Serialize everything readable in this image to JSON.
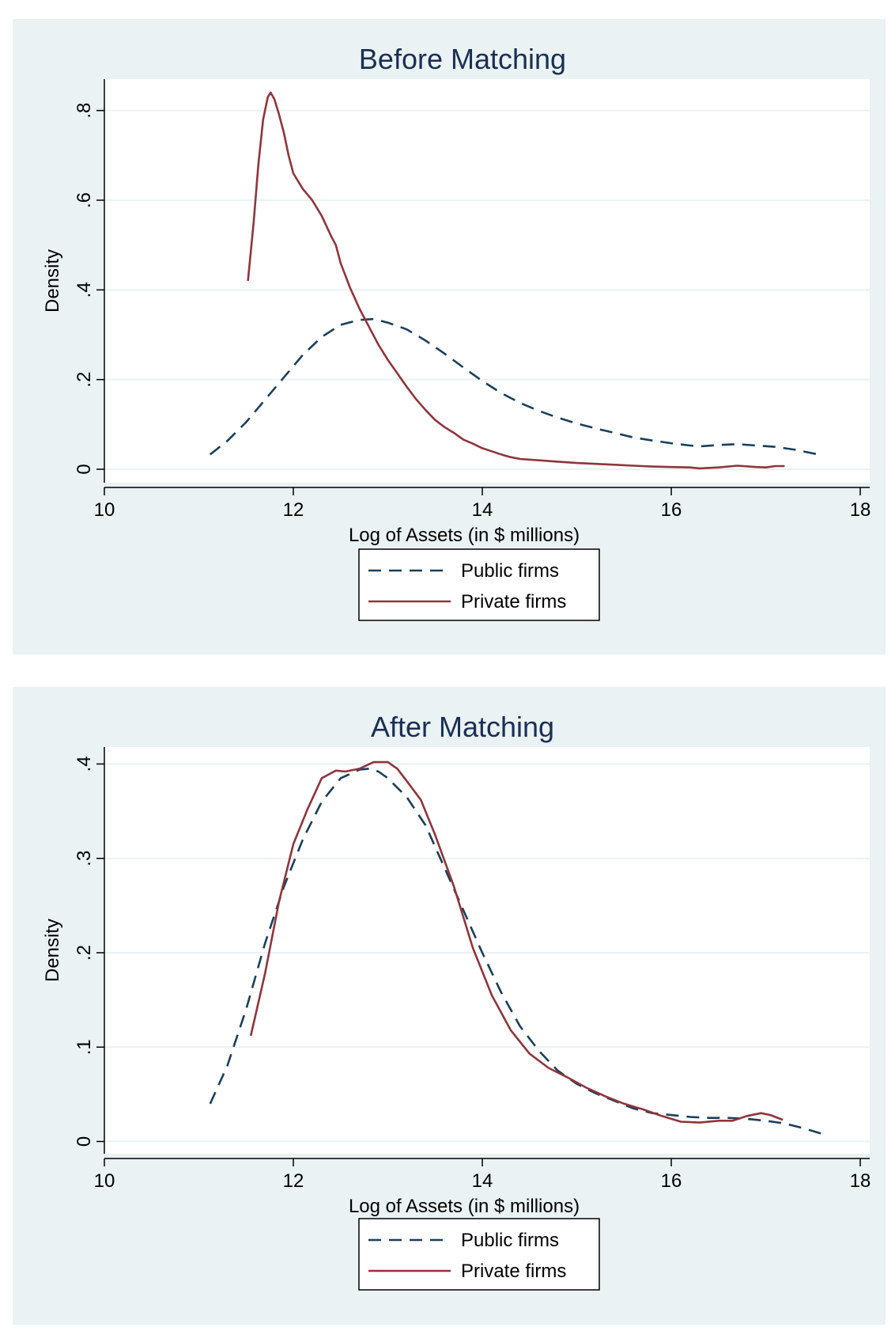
{
  "colors": {
    "panel_background": "#eaf2f3",
    "plot_background": "#ffffff",
    "grid": "#eaf2f3",
    "title": "#1a2f55",
    "public_firms": "#1a3f5c",
    "private_firms": "#90353b"
  },
  "chart_data": [
    {
      "type": "line",
      "title": "Before Matching",
      "xlabel": "Log of Assets (in $ millions)",
      "ylabel": "Density",
      "xlim": [
        10,
        18.1
      ],
      "ylim": [
        -0.03,
        0.87
      ],
      "xticks": [
        10,
        12,
        14,
        16,
        18
      ],
      "xtick_labels": [
        "10",
        "12",
        "14",
        "16",
        "18"
      ],
      "yticks": [
        0,
        0.2,
        0.4,
        0.6,
        0.8
      ],
      "ytick_labels": [
        "0",
        ".2",
        ".4",
        ".6",
        ".8"
      ],
      "grid": true,
      "legend_position": "bottom",
      "series": [
        {
          "name": "Public firms",
          "style": "dashed",
          "points": [
            [
              11.12,
              0.033
            ],
            [
              11.3,
              0.063
            ],
            [
              11.5,
              0.105
            ],
            [
              11.7,
              0.155
            ],
            [
              11.9,
              0.205
            ],
            [
              12.1,
              0.255
            ],
            [
              12.3,
              0.295
            ],
            [
              12.5,
              0.322
            ],
            [
              12.7,
              0.333
            ],
            [
              12.85,
              0.335
            ],
            [
              13.0,
              0.327
            ],
            [
              13.2,
              0.312
            ],
            [
              13.4,
              0.287
            ],
            [
              13.6,
              0.258
            ],
            [
              13.8,
              0.227
            ],
            [
              14.0,
              0.197
            ],
            [
              14.2,
              0.17
            ],
            [
              14.4,
              0.148
            ],
            [
              14.6,
              0.13
            ],
            [
              14.8,
              0.115
            ],
            [
              15.0,
              0.102
            ],
            [
              15.2,
              0.091
            ],
            [
              15.4,
              0.081
            ],
            [
              15.6,
              0.071
            ],
            [
              15.8,
              0.064
            ],
            [
              16.0,
              0.058
            ],
            [
              16.2,
              0.053
            ],
            [
              16.3,
              0.051
            ],
            [
              16.5,
              0.054
            ],
            [
              16.7,
              0.056
            ],
            [
              16.9,
              0.053
            ],
            [
              17.1,
              0.05
            ],
            [
              17.3,
              0.044
            ],
            [
              17.58,
              0.032
            ]
          ]
        },
        {
          "name": "Private firms",
          "style": "solid",
          "points": [
            [
              11.52,
              0.42
            ],
            [
              11.58,
              0.55
            ],
            [
              11.63,
              0.68
            ],
            [
              11.68,
              0.78
            ],
            [
              11.73,
              0.83
            ],
            [
              11.76,
              0.84
            ],
            [
              11.8,
              0.825
            ],
            [
              11.85,
              0.79
            ],
            [
              11.9,
              0.75
            ],
            [
              11.95,
              0.7
            ],
            [
              12.0,
              0.66
            ],
            [
              12.1,
              0.625
            ],
            [
              12.2,
              0.6
            ],
            [
              12.3,
              0.565
            ],
            [
              12.4,
              0.52
            ],
            [
              12.45,
              0.5
            ],
            [
              12.5,
              0.46
            ],
            [
              12.6,
              0.405
            ],
            [
              12.7,
              0.358
            ],
            [
              12.8,
              0.318
            ],
            [
              12.9,
              0.278
            ],
            [
              13.0,
              0.244
            ],
            [
              13.1,
              0.214
            ],
            [
              13.2,
              0.184
            ],
            [
              13.3,
              0.156
            ],
            [
              13.4,
              0.132
            ],
            [
              13.5,
              0.11
            ],
            [
              13.6,
              0.094
            ],
            [
              13.7,
              0.081
            ],
            [
              13.8,
              0.066
            ],
            [
              13.9,
              0.057
            ],
            [
              14.0,
              0.047
            ],
            [
              14.1,
              0.04
            ],
            [
              14.2,
              0.033
            ],
            [
              14.3,
              0.027
            ],
            [
              14.4,
              0.023
            ],
            [
              14.6,
              0.02
            ],
            [
              14.8,
              0.017
            ],
            [
              15.0,
              0.014
            ],
            [
              15.2,
              0.012
            ],
            [
              15.4,
              0.01
            ],
            [
              15.6,
              0.008
            ],
            [
              15.8,
              0.006
            ],
            [
              16.0,
              0.005
            ],
            [
              16.2,
              0.004
            ],
            [
              16.3,
              0.002
            ],
            [
              16.5,
              0.004
            ],
            [
              16.7,
              0.008
            ],
            [
              16.9,
              0.005
            ],
            [
              17.0,
              0.004
            ],
            [
              17.1,
              0.007
            ],
            [
              17.2,
              0.007
            ]
          ]
        }
      ]
    },
    {
      "type": "line",
      "title": "After Matching",
      "xlabel": "Log of Assets (in $ millions)",
      "ylabel": "Density",
      "xlim": [
        10,
        18.1
      ],
      "ylim": [
        -0.013,
        0.418
      ],
      "xticks": [
        10,
        12,
        14,
        16,
        18
      ],
      "xtick_labels": [
        "10",
        "12",
        "14",
        "16",
        "18"
      ],
      "yticks": [
        0,
        0.1,
        0.2,
        0.3,
        0.4
      ],
      "ytick_labels": [
        "0",
        ".1",
        ".2",
        ".3",
        ".4"
      ],
      "grid": true,
      "legend_position": "bottom",
      "series": [
        {
          "name": "Public firms",
          "style": "dashed",
          "points": [
            [
              11.12,
              0.04
            ],
            [
              11.3,
              0.08
            ],
            [
              11.5,
              0.14
            ],
            [
              11.7,
              0.21
            ],
            [
              11.9,
              0.27
            ],
            [
              12.1,
              0.32
            ],
            [
              12.3,
              0.36
            ],
            [
              12.5,
              0.385
            ],
            [
              12.7,
              0.394
            ],
            [
              12.8,
              0.395
            ],
            [
              12.9,
              0.392
            ],
            [
              13.0,
              0.385
            ],
            [
              13.2,
              0.365
            ],
            [
              13.4,
              0.335
            ],
            [
              13.6,
              0.29
            ],
            [
              13.8,
              0.245
            ],
            [
              14.0,
              0.2
            ],
            [
              14.2,
              0.158
            ],
            [
              14.4,
              0.122
            ],
            [
              14.6,
              0.096
            ],
            [
              14.8,
              0.075
            ],
            [
              15.0,
              0.061
            ],
            [
              15.2,
              0.051
            ],
            [
              15.4,
              0.043
            ],
            [
              15.6,
              0.035
            ],
            [
              15.8,
              0.03
            ],
            [
              16.0,
              0.028
            ],
            [
              16.2,
              0.026
            ],
            [
              16.4,
              0.025
            ],
            [
              16.6,
              0.025
            ],
            [
              16.8,
              0.024
            ],
            [
              17.0,
              0.022
            ],
            [
              17.2,
              0.019
            ],
            [
              17.4,
              0.014
            ],
            [
              17.6,
              0.008
            ]
          ]
        },
        {
          "name": "Private firms",
          "style": "solid",
          "points": [
            [
              11.55,
              0.112
            ],
            [
              11.7,
              0.178
            ],
            [
              11.85,
              0.255
            ],
            [
              12.0,
              0.315
            ],
            [
              12.15,
              0.352
            ],
            [
              12.3,
              0.385
            ],
            [
              12.45,
              0.393
            ],
            [
              12.55,
              0.392
            ],
            [
              12.7,
              0.395
            ],
            [
              12.85,
              0.402
            ],
            [
              13.0,
              0.402
            ],
            [
              13.1,
              0.395
            ],
            [
              13.2,
              0.382
            ],
            [
              13.35,
              0.362
            ],
            [
              13.5,
              0.325
            ],
            [
              13.7,
              0.27
            ],
            [
              13.9,
              0.205
            ],
            [
              14.1,
              0.155
            ],
            [
              14.3,
              0.118
            ],
            [
              14.5,
              0.093
            ],
            [
              14.7,
              0.078
            ],
            [
              14.9,
              0.068
            ],
            [
              15.1,
              0.057
            ],
            [
              15.3,
              0.048
            ],
            [
              15.5,
              0.04
            ],
            [
              15.7,
              0.034
            ],
            [
              15.9,
              0.027
            ],
            [
              16.1,
              0.021
            ],
            [
              16.3,
              0.02
            ],
            [
              16.5,
              0.022
            ],
            [
              16.65,
              0.022
            ],
            [
              16.8,
              0.027
            ],
            [
              16.95,
              0.03
            ],
            [
              17.05,
              0.028
            ],
            [
              17.18,
              0.023
            ]
          ]
        }
      ]
    }
  ]
}
